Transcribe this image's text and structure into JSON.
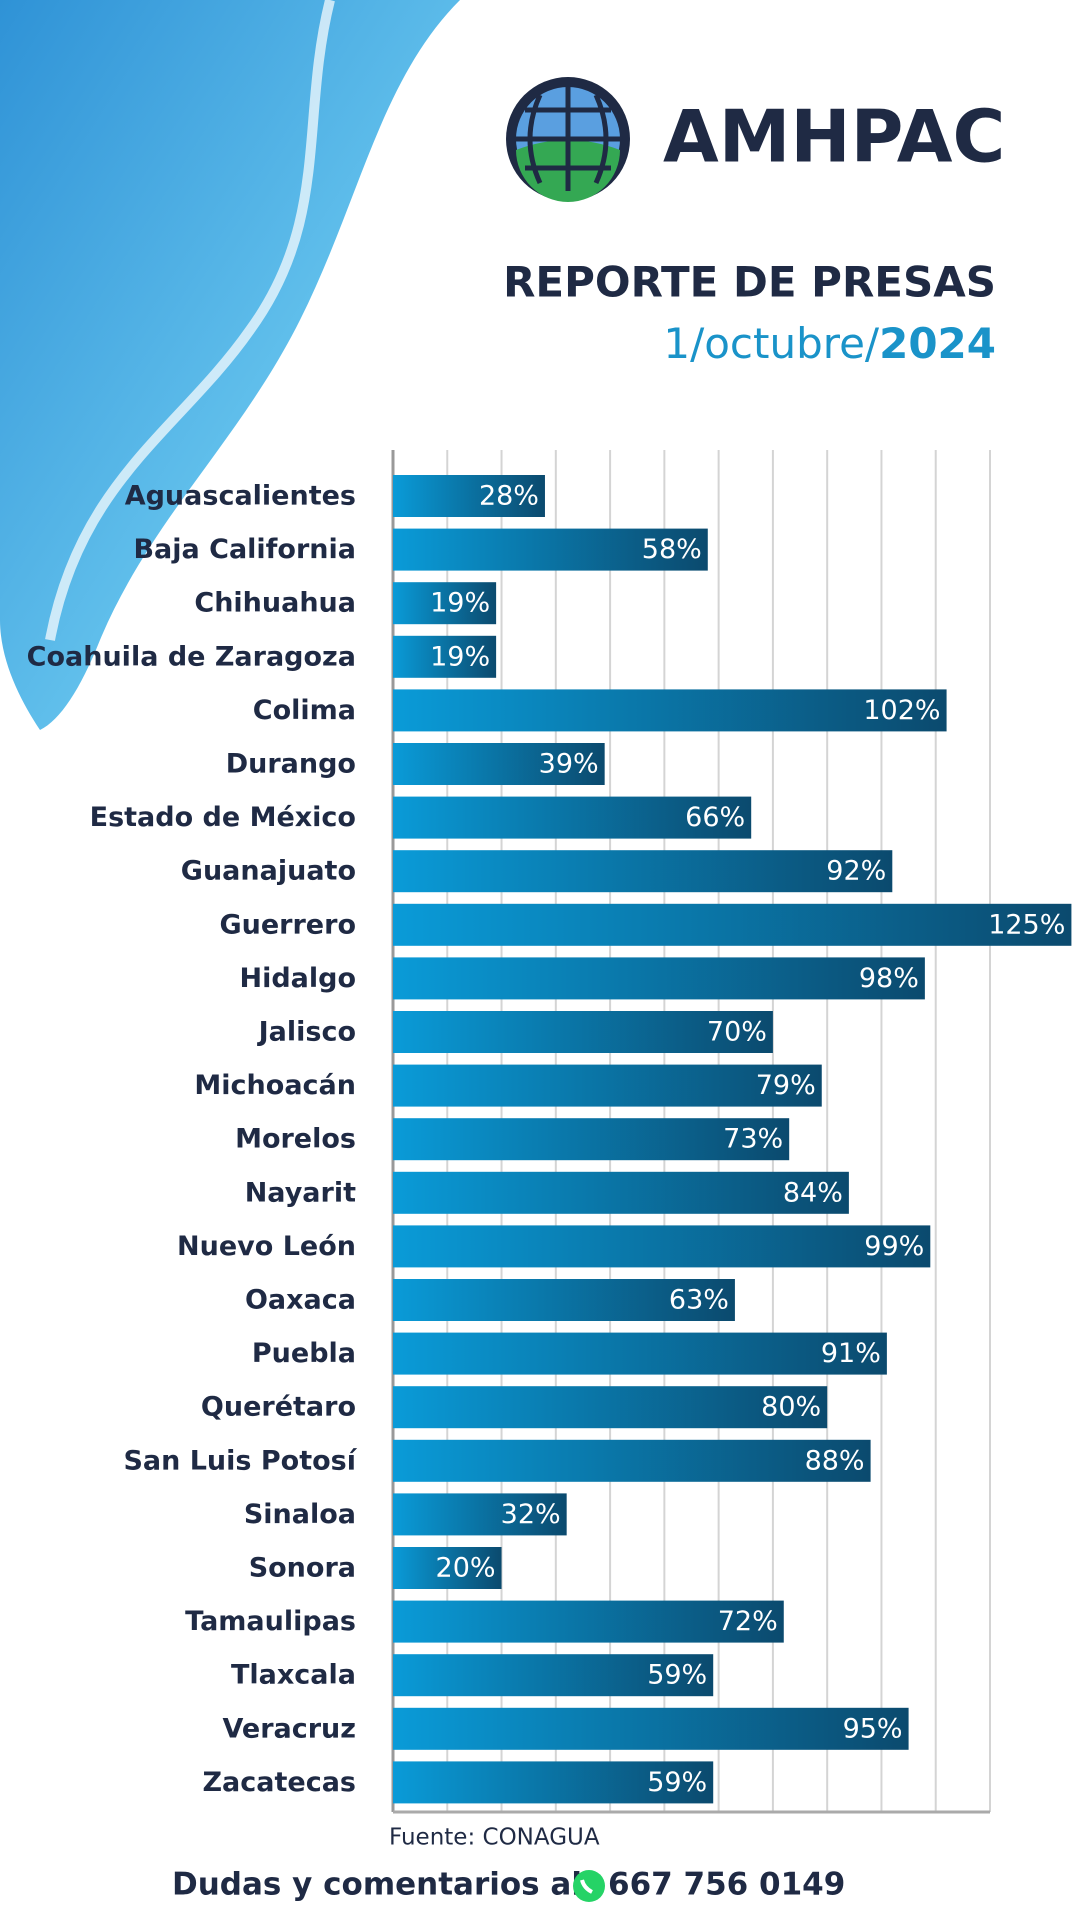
{
  "header": {
    "brand": "AMHPAC",
    "title": "REPORTE DE PRESAS",
    "date": {
      "day_month": "1/octubre/",
      "year": "2024"
    }
  },
  "chart_data": {
    "type": "hbar",
    "categories": [
      "Aguascalientes",
      "Baja California",
      "Chihuahua",
      "Coahuila de Zaragoza",
      "Colima",
      "Durango",
      "Estado de México",
      "Guanajuato",
      "Guerrero",
      "Hidalgo",
      "Jalisco",
      "Michoacán",
      "Morelos",
      "Nayarit",
      "Nuevo León",
      "Oaxaca",
      "Puebla",
      "Querétaro",
      "San Luis Potosí",
      "Sinaloa",
      "Sonora",
      "Tamaulipas",
      "Tlaxcala",
      "Veracruz",
      "Zacatecas"
    ],
    "values": [
      28,
      58,
      19,
      19,
      102,
      39,
      66,
      92,
      125,
      98,
      70,
      79,
      73,
      84,
      99,
      63,
      91,
      80,
      88,
      32,
      20,
      72,
      59,
      95,
      59
    ],
    "value_labels": [
      "28%",
      "58%",
      "19%",
      "19%",
      "102%",
      "39%",
      "66%",
      "92%",
      "125%",
      "98%",
      "70%",
      "79%",
      "73%",
      "84%",
      "99%",
      "63%",
      "91%",
      "80%",
      "88%",
      "32%",
      "20%",
      "72%",
      "59%",
      "95%",
      "59%"
    ],
    "color": [
      "#0a9bd8",
      "#0b4a6e"
    ],
    "xlim": [
      0,
      110
    ],
    "xticks": [
      0,
      10,
      20,
      30,
      40,
      50,
      60,
      70,
      80,
      90,
      100,
      110
    ],
    "grid": true,
    "source": "Fuente: CONAGUA"
  },
  "footer": {
    "text": "Dudas y comentarios al",
    "phone": "667 756 0149"
  }
}
